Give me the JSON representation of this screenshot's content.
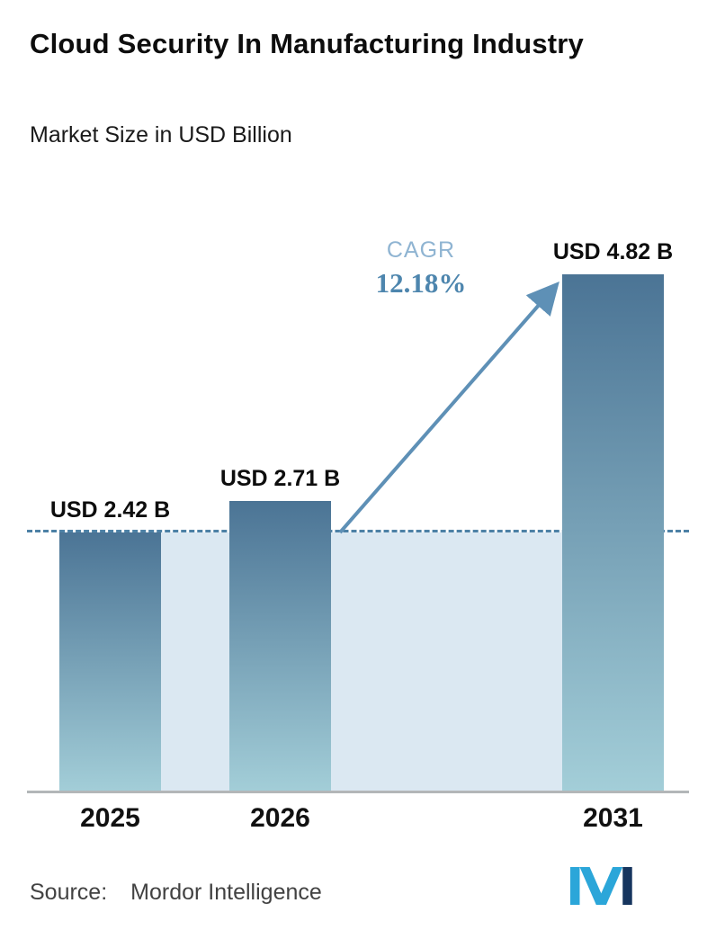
{
  "header": {
    "title": "Cloud Security In Manufacturing Industry",
    "subtitle": "Market Size in USD Billion"
  },
  "chart_data": {
    "type": "bar",
    "categories": [
      "2025",
      "2026",
      "2031"
    ],
    "values": [
      2.42,
      2.71,
      4.82
    ],
    "value_labels": [
      "USD 2.42 B",
      "USD 2.71 B",
      "USD 4.82 B"
    ],
    "series": [
      {
        "name": "Market Size (USD Billion)",
        "values": [
          2.42,
          2.71,
          4.82
        ]
      }
    ],
    "title": "Cloud Security In Manufacturing Industry",
    "subtitle": "Market Size in USD Billion",
    "xlabel": "",
    "ylabel": "Market Size in USD Billion",
    "ylim": [
      0,
      4.82
    ],
    "grid": false,
    "legend": "none",
    "annotations": {
      "cagr_label": "CAGR",
      "cagr_value": "12.18%",
      "dashed_reference_value": 2.42
    },
    "colors": {
      "bar_gradient_top": "#4b7495",
      "bar_gradient_bottom": "#a3ced8",
      "reference_fill": "#dbe8f2",
      "dashed_line": "#4d81a6",
      "arrow": "#5e90b6",
      "cagr_label": "#8fb4d2",
      "cagr_value": "#4e86ae",
      "axis_line": "#b3b6b8"
    }
  },
  "footer": {
    "source_label": "Source:",
    "source_value": "Mordor Intelligence",
    "logo_name": "mordor-intelligence-logo"
  }
}
